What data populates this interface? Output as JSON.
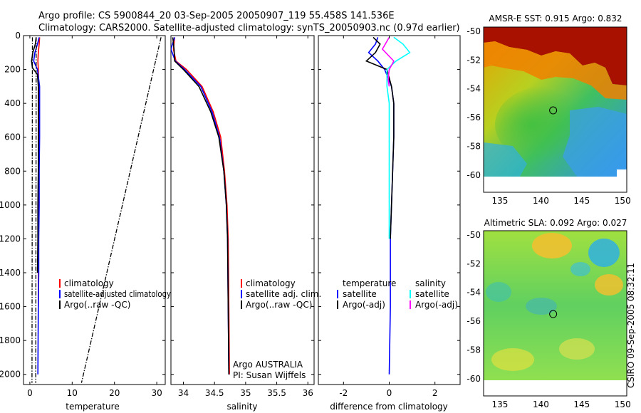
{
  "header": {
    "line1": "Argo profile: CS 5900844_20 03-Sep-2005 20050907_119 55.458S 141.536E",
    "line2": "Climatology: CARS2000. Satellite-adjusted climatology: synTS_20050903.nc (0.97d earlier)"
  },
  "colors": {
    "clim": "#ff0000",
    "sat": "#0000ff",
    "argo": "#000000",
    "sat_s": "#00ffff",
    "argo_s": "#ff00ff"
  },
  "chart_data": [
    {
      "id": "temperature",
      "type": "line",
      "xlabel": "temperature",
      "ylabel": "",
      "xlim": [
        -1.5,
        32
      ],
      "ylim": [
        2060,
        0
      ],
      "xticks": [
        0,
        10,
        20,
        30
      ],
      "yticks": [
        0,
        200,
        400,
        600,
        800,
        1000,
        1200,
        1400,
        1600,
        1800,
        2000
      ],
      "legend": [
        "climatology",
        "satellite-adjusted climatology",
        "Argo(..raw -QC)"
      ],
      "series": [
        {
          "name": "climatology",
          "color": "#ff0000",
          "x": [
            2.3,
            2.2,
            2.0,
            1.9,
            2.0,
            2.1,
            2.1,
            2.1,
            2.0,
            2.0,
            2.0,
            2.0,
            2.0
          ],
          "y": [
            10,
            50,
            100,
            150,
            200,
            300,
            400,
            600,
            800,
            1000,
            1200,
            1400,
            1600
          ]
        },
        {
          "name": "satellite-adjusted climatology",
          "color": "#0000ff",
          "x": [
            2.2,
            1.8,
            1.2,
            0.9,
            1.8,
            2.3,
            2.3,
            2.3,
            2.2,
            2.2,
            2.1,
            2.1,
            2.0,
            1.9
          ],
          "y": [
            10,
            50,
            100,
            150,
            200,
            300,
            400,
            600,
            800,
            1000,
            1200,
            1400,
            1600,
            2000
          ]
        },
        {
          "name": "Argo(..raw -QC)",
          "color": "#000000",
          "x": [
            1.5,
            1.3,
            0.7,
            0.4,
            0.6,
            1.8,
            2.0,
            2.0,
            2.0,
            2.0,
            1.9,
            1.9,
            1.8
          ],
          "y": [
            10,
            50,
            100,
            150,
            190,
            230,
            300,
            400,
            600,
            800,
            1000,
            1200,
            1400
          ]
        },
        {
          "name": "raw-ref-1",
          "color": "#000000",
          "dash": true,
          "x": [
            0.6,
            0.5
          ],
          "y": [
            10,
            2050
          ]
        },
        {
          "name": "raw-ref-2",
          "color": "#000000",
          "dash": true,
          "x": [
            1.5,
            1.4
          ],
          "y": [
            10,
            2050
          ]
        },
        {
          "name": "raw-ref-3",
          "color": "#000000",
          "dash": true,
          "x": [
            31.0,
            12.2
          ],
          "y": [
            10,
            2050
          ]
        }
      ]
    },
    {
      "id": "salinity",
      "type": "line",
      "xlabel": "salinity",
      "xlim": [
        33.8,
        36.1
      ],
      "ylim": [
        2060,
        0
      ],
      "xticks": [
        34,
        34.5,
        35,
        35.5,
        36
      ],
      "legend": [
        "climatology",
        "satellite adj. clim.",
        "Argo(..raw -QC)"
      ],
      "annotation": [
        "Argo AUSTRALIA",
        "PI: Susan Wijffels"
      ],
      "series": [
        {
          "name": "climatology",
          "color": "#ff0000",
          "x": [
            33.86,
            33.84,
            33.88,
            34.05,
            34.3,
            34.48,
            34.6,
            34.66,
            34.7,
            34.72,
            34.73,
            34.74
          ],
          "y": [
            10,
            80,
            150,
            200,
            300,
            450,
            600,
            800,
            1000,
            1200,
            1600,
            2000
          ]
        },
        {
          "name": "satellite adj. clim.",
          "color": "#0000ff",
          "x": [
            33.86,
            33.8,
            33.87,
            34.02,
            34.28,
            34.46,
            34.58,
            34.65,
            34.69,
            34.71,
            34.72,
            34.73
          ],
          "y": [
            10,
            80,
            150,
            200,
            300,
            450,
            600,
            800,
            1000,
            1200,
            1600,
            2000
          ]
        },
        {
          "name": "Argo(..raw -QC)",
          "color": "#000000",
          "x": [
            33.83,
            33.85,
            33.86,
            34.0,
            34.25,
            34.44,
            34.57,
            34.65,
            34.69,
            34.71,
            34.72,
            34.73
          ],
          "y": [
            10,
            80,
            150,
            200,
            300,
            450,
            600,
            800,
            1000,
            1200,
            1600,
            2000
          ]
        }
      ]
    },
    {
      "id": "difference",
      "type": "line",
      "xlabel": "difference from climatology",
      "xlim": [
        -3.1,
        3.1
      ],
      "ylim": [
        2060,
        0
      ],
      "xticks": [
        -2,
        0,
        2
      ],
      "legend_temperature": {
        "title": "temperature",
        "items": [
          "satellite",
          "Argo(-adj)"
        ]
      },
      "legend_salinity": {
        "title": "salinity",
        "items": [
          "satellite",
          "Argo(-adj)"
        ]
      },
      "series": [
        {
          "name": "temperature satellite",
          "color": "#0000ff",
          "x": [
            -0.5,
            -0.6,
            -0.9,
            -0.5,
            -0.2,
            0.1,
            0.2,
            0.2,
            0.15,
            0.1,
            0.05,
            0.05,
            0.0
          ],
          "y": [
            10,
            50,
            100,
            150,
            200,
            300,
            400,
            600,
            800,
            1000,
            1200,
            1600,
            2000
          ]
        },
        {
          "name": "temperature Argo(-adj)",
          "color": "#000000",
          "x": [
            -0.7,
            -0.4,
            -0.6,
            -1.0,
            -0.1,
            0.1,
            0.2,
            0.2,
            0.15,
            0.1,
            0.05
          ],
          "y": [
            10,
            50,
            100,
            150,
            200,
            300,
            400,
            600,
            800,
            1000,
            1200
          ]
        },
        {
          "name": "salinity satellite",
          "color": "#00ffff",
          "x": [
            0.2,
            0.6,
            0.9,
            0.3,
            -0.1,
            -0.1,
            0.0,
            0.0,
            0.0,
            0.0
          ],
          "y": [
            10,
            50,
            100,
            150,
            200,
            300,
            400,
            600,
            1000,
            1200
          ]
        },
        {
          "name": "salinity Argo(-adj)",
          "color": "#ff00ff",
          "x": [
            0.0,
            -0.3,
            0.2,
            0.0,
            -0.05,
            0.0
          ],
          "y": [
            10,
            80,
            150,
            200,
            260,
            300
          ]
        }
      ]
    },
    {
      "id": "sst-map",
      "type": "heatmap",
      "title": "AMSR-E SST: 0.915 Argo: 0.832",
      "xlim": [
        133,
        150.5
      ],
      "ylim": [
        -61.2,
        -49.7
      ],
      "xticks": [
        135,
        140,
        145,
        150
      ],
      "yticks": [
        -50,
        -52,
        -54,
        -56,
        -58,
        -60
      ],
      "marker": {
        "lon": 141.5,
        "lat": -55.5
      }
    },
    {
      "id": "sla-map",
      "type": "heatmap",
      "title": "Altimetric SLA: 0.092 Argo: 0.027",
      "xlim": [
        133,
        150.5
      ],
      "ylim": [
        -61.2,
        -49.7
      ],
      "xticks": [
        135,
        140,
        145,
        150
      ],
      "yticks": [
        -50,
        -52,
        -54,
        -56,
        -58,
        -60
      ],
      "marker": {
        "lon": 141.5,
        "lat": -55.5
      }
    }
  ],
  "footer": {
    "stamp": "CSIRO 09-Sep-2005 08:32:11"
  }
}
